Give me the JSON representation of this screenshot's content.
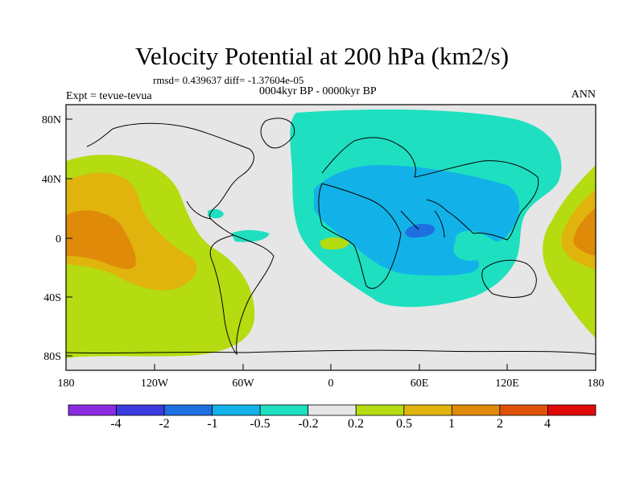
{
  "figure": {
    "title": "Velocity Potential at 200 hPa (km2/s)",
    "stats": "rmsd= 0.439637 diff= -1.37604e-05",
    "subtitle": "0004kyr BP - 0000kyr BP",
    "left_label": "Expt = tevue-tevua",
    "right_label": "ANN"
  },
  "axes": {
    "lat_labels": [
      "80N",
      "40N",
      "0",
      "40S",
      "80S"
    ],
    "lon_labels": [
      "180",
      "120W",
      "60W",
      "0",
      "60E",
      "120E",
      "180"
    ]
  },
  "colorbar": {
    "labels": [
      "-4",
      "-2",
      "-1",
      "-0.5",
      "-0.2",
      "0.2",
      "0.5",
      "1",
      "2",
      "4"
    ],
    "colors": [
      "#8a2be2",
      "#3a3ae0",
      "#1e6fe0",
      "#12b2e8",
      "#1ee0c0",
      "#e6e6e6",
      "#b4dc10",
      "#e0b40c",
      "#e08a0a",
      "#e0520a",
      "#e00a0a"
    ]
  },
  "colors": {
    "neutral": "#e6e6e6",
    "teal": "#1ee0c0",
    "cyan": "#12b2e8",
    "blue": "#1e6fe0",
    "lime": "#b4dc10",
    "yellow": "#e0b40c",
    "orange": "#e08a0a"
  }
}
